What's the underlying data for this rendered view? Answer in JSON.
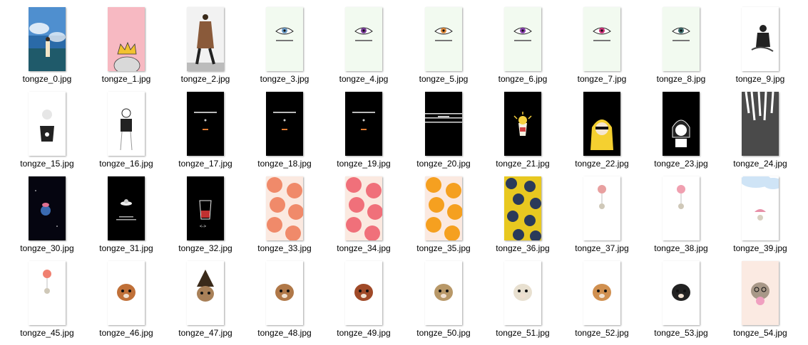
{
  "files": [
    {
      "name": "tongze_0.jpg",
      "thumb": "sky-boy"
    },
    {
      "name": "tongze_1.jpg",
      "thumb": "pink-crown"
    },
    {
      "name": "tongze_2.jpg",
      "thumb": "walking-man"
    },
    {
      "name": "tongze_3.jpg",
      "thumb": "eye",
      "accent": "#6a9cc8"
    },
    {
      "name": "tongze_4.jpg",
      "thumb": "eye",
      "accent": "#7a3b9a"
    },
    {
      "name": "tongze_5.jpg",
      "thumb": "eye",
      "accent": "#e08a3a"
    },
    {
      "name": "tongze_6.jpg",
      "thumb": "eye",
      "accent": "#8a3fb0"
    },
    {
      "name": "tongze_7.jpg",
      "thumb": "eye",
      "accent": "#d0307a"
    },
    {
      "name": "tongze_8.jpg",
      "thumb": "eye",
      "accent": "#3a6a6a"
    },
    {
      "name": "tongze_9.jpg",
      "thumb": "sketch-sitting"
    },
    {
      "name": "tongze_15.jpg",
      "thumb": "sketch-girl-white"
    },
    {
      "name": "tongze_16.jpg",
      "thumb": "sketch-girl-back"
    },
    {
      "name": "tongze_17.jpg",
      "thumb": "black-text"
    },
    {
      "name": "tongze_18.jpg",
      "thumb": "black-text"
    },
    {
      "name": "tongze_19.jpg",
      "thumb": "black-text"
    },
    {
      "name": "tongze_20.jpg",
      "thumb": "black-lines"
    },
    {
      "name": "tongze_21.jpg",
      "thumb": "black-popcorn"
    },
    {
      "name": "tongze_22.jpg",
      "thumb": "black-blonde"
    },
    {
      "name": "tongze_23.jpg",
      "thumb": "black-bob"
    },
    {
      "name": "tongze_24.jpg",
      "thumb": "gray-hands"
    },
    {
      "name": "tongze_30.jpg",
      "thumb": "black-planet"
    },
    {
      "name": "tongze_31.jpg",
      "thumb": "black-ufo"
    },
    {
      "name": "tongze_32.jpg",
      "thumb": "black-cup"
    },
    {
      "name": "tongze_33.jpg",
      "thumb": "fruit",
      "accent": "#f08a6a"
    },
    {
      "name": "tongze_34.jpg",
      "thumb": "fruit",
      "accent": "#f0707a"
    },
    {
      "name": "tongze_35.jpg",
      "thumb": "fruit",
      "accent": "#f5a020"
    },
    {
      "name": "tongze_36.jpg",
      "thumb": "blueberry"
    },
    {
      "name": "tongze_37.jpg",
      "thumb": "balloon",
      "accent": "#e8a0a0"
    },
    {
      "name": "tongze_38.jpg",
      "thumb": "balloon",
      "accent": "#f0a0b0"
    },
    {
      "name": "tongze_39.jpg",
      "thumb": "cloud-umbrella"
    },
    {
      "name": "tongze_45.jpg",
      "thumb": "balloon",
      "accent": "#f08070"
    },
    {
      "name": "tongze_46.jpg",
      "thumb": "animal",
      "accent": "#c07038"
    },
    {
      "name": "tongze_47.jpg",
      "thumb": "animal-hat",
      "accent": "#a88058"
    },
    {
      "name": "tongze_48.jpg",
      "thumb": "animal",
      "accent": "#b07848"
    },
    {
      "name": "tongze_49.jpg",
      "thumb": "animal",
      "accent": "#a04a28"
    },
    {
      "name": "tongze_50.jpg",
      "thumb": "animal",
      "accent": "#b89868"
    },
    {
      "name": "tongze_51.jpg",
      "thumb": "animal",
      "accent": "#e8e0d0"
    },
    {
      "name": "tongze_52.jpg",
      "thumb": "animal",
      "accent": "#d09050"
    },
    {
      "name": "tongze_53.jpg",
      "thumb": "animal",
      "accent": "#222222"
    },
    {
      "name": "tongze_54.jpg",
      "thumb": "cat-bubble"
    }
  ]
}
